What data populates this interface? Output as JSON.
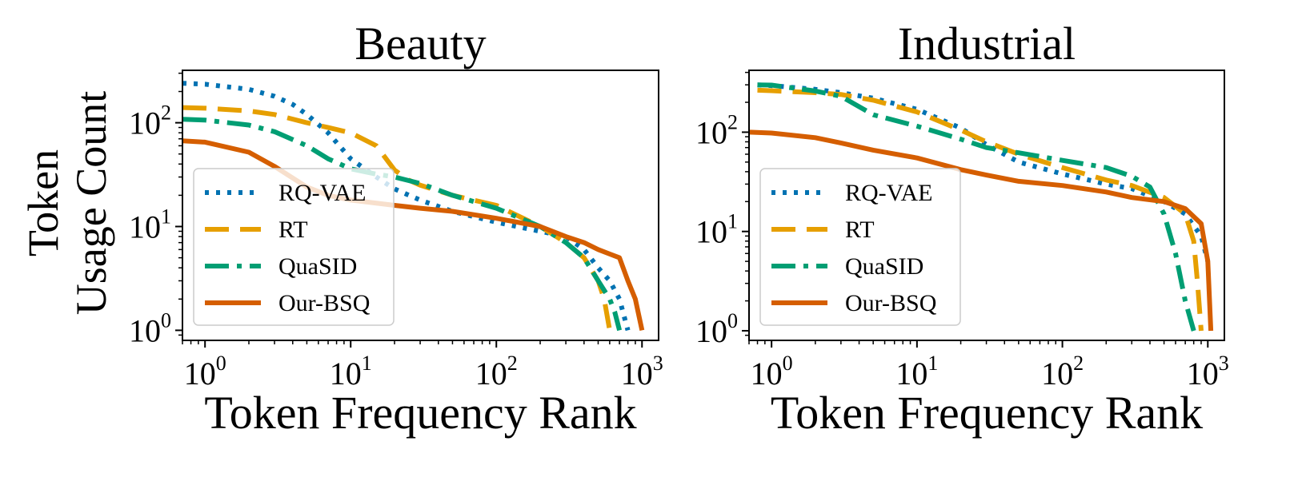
{
  "figure": {
    "ylabel_line1": "Token",
    "ylabel_line2": "Usage Count"
  },
  "series_style": [
    {
      "name": "RQ-VAE",
      "color": "#0072b2",
      "dash": "dotted"
    },
    {
      "name": "RT",
      "color": "#e69f00",
      "dash": "dashed"
    },
    {
      "name": "QuaSID",
      "color": "#009e73",
      "dash": "dashdot"
    },
    {
      "name": "Our-BSQ",
      "color": "#d55e00",
      "dash": "solid"
    }
  ],
  "chart_data": [
    {
      "type": "line",
      "title": "Beauty",
      "xlabel": "Token Frequency Rank",
      "ylabel": "Token Usage Count",
      "xscale": "log",
      "yscale": "log",
      "xlim": [
        0.7,
        1300
      ],
      "ylim": [
        0.8,
        320
      ],
      "xticks": [
        1,
        10,
        100,
        1000
      ],
      "xtick_labels": [
        {
          "base": "10",
          "exp": "0"
        },
        {
          "base": "10",
          "exp": "1"
        },
        {
          "base": "10",
          "exp": "2"
        },
        {
          "base": "10",
          "exp": "3"
        }
      ],
      "yticks": [
        1,
        10,
        100
      ],
      "ytick_labels": [
        {
          "base": "10",
          "exp": "0"
        },
        {
          "base": "10",
          "exp": "1"
        },
        {
          "base": "10",
          "exp": "2"
        }
      ],
      "grid": false,
      "legend_position": "left",
      "series": [
        {
          "name": "RQ-VAE",
          "x": [
            0.7,
            1,
            2,
            3,
            4,
            5,
            7,
            10,
            15,
            20,
            30,
            50,
            100,
            200,
            300,
            400,
            500,
            600,
            700,
            800
          ],
          "y": [
            240,
            235,
            210,
            180,
            150,
            120,
            80,
            45,
            30,
            23,
            18,
            14,
            11,
            9,
            8,
            6,
            4,
            3,
            2,
            1
          ]
        },
        {
          "name": "RT",
          "x": [
            0.7,
            1,
            2,
            3,
            5,
            7,
            10,
            15,
            20,
            25,
            30,
            50,
            100,
            200,
            300,
            400,
            500,
            550,
            600
          ],
          "y": [
            140,
            138,
            130,
            120,
            100,
            90,
            80,
            60,
            35,
            28,
            25,
            20,
            16,
            10,
            7,
            5,
            3,
            2,
            1
          ]
        },
        {
          "name": "QuaSID",
          "x": [
            0.7,
            1,
            2,
            3,
            5,
            7,
            10,
            15,
            20,
            30,
            50,
            100,
            200,
            300,
            400,
            500,
            600,
            650,
            700
          ],
          "y": [
            108,
            106,
            95,
            82,
            60,
            45,
            36,
            32,
            30,
            26,
            20,
            15,
            10,
            7,
            5,
            3,
            2,
            1.5,
            1
          ]
        },
        {
          "name": "Our-BSQ",
          "x": [
            0.7,
            1,
            2,
            3,
            5,
            7,
            10,
            20,
            30,
            50,
            100,
            200,
            300,
            400,
            500,
            700,
            800,
            900,
            1000
          ],
          "y": [
            67,
            65,
            52,
            38,
            24,
            20,
            18,
            16,
            15,
            14,
            12,
            10,
            8,
            7,
            6,
            5,
            3,
            2,
            1
          ]
        }
      ]
    },
    {
      "type": "line",
      "title": "Industrial",
      "xlabel": "Token Frequency Rank",
      "ylabel": "",
      "xscale": "log",
      "yscale": "log",
      "xlim": [
        0.7,
        1300
      ],
      "ylim": [
        0.8,
        420
      ],
      "xticks": [
        1,
        10,
        100,
        1000
      ],
      "xtick_labels": [
        {
          "base": "10",
          "exp": "0"
        },
        {
          "base": "10",
          "exp": "1"
        },
        {
          "base": "10",
          "exp": "2"
        },
        {
          "base": "10",
          "exp": "3"
        }
      ],
      "yticks": [
        1,
        10,
        100
      ],
      "ytick_labels": [
        {
          "base": "10",
          "exp": "0"
        },
        {
          "base": "10",
          "exp": "1"
        },
        {
          "base": "10",
          "exp": "2"
        }
      ],
      "grid": false,
      "legend_position": "left",
      "series": [
        {
          "name": "RQ-VAE",
          "x": [
            0.8,
            1,
            2,
            3,
            5,
            10,
            20,
            30,
            50,
            100,
            200,
            300,
            500,
            700,
            900,
            1000
          ],
          "y": [
            300,
            295,
            270,
            250,
            220,
            170,
            110,
            75,
            50,
            38,
            30,
            27,
            20,
            15,
            9,
            5
          ]
        },
        {
          "name": "RT",
          "x": [
            0.8,
            1,
            2,
            3,
            5,
            10,
            20,
            30,
            50,
            100,
            200,
            300,
            500,
            700,
            800,
            850,
            900
          ],
          "y": [
            265,
            262,
            250,
            240,
            210,
            160,
            105,
            80,
            60,
            44,
            33,
            29,
            22,
            15,
            8,
            3,
            1
          ]
        },
        {
          "name": "QuaSID",
          "x": [
            0.8,
            1,
            2,
            3,
            5,
            10,
            20,
            30,
            50,
            100,
            200,
            300,
            400,
            500,
            600,
            700,
            800
          ],
          "y": [
            300,
            298,
            260,
            230,
            150,
            115,
            85,
            70,
            62,
            52,
            44,
            36,
            28,
            15,
            6,
            2,
            1
          ]
        },
        {
          "name": "Our-BSQ",
          "x": [
            0.7,
            1,
            2,
            3,
            5,
            10,
            20,
            30,
            50,
            100,
            200,
            300,
            500,
            700,
            900,
            1000,
            1050
          ],
          "y": [
            100,
            98,
            88,
            78,
            66,
            55,
            42,
            37,
            32,
            29,
            25,
            22,
            20,
            17,
            12,
            5,
            1
          ]
        }
      ]
    }
  ]
}
